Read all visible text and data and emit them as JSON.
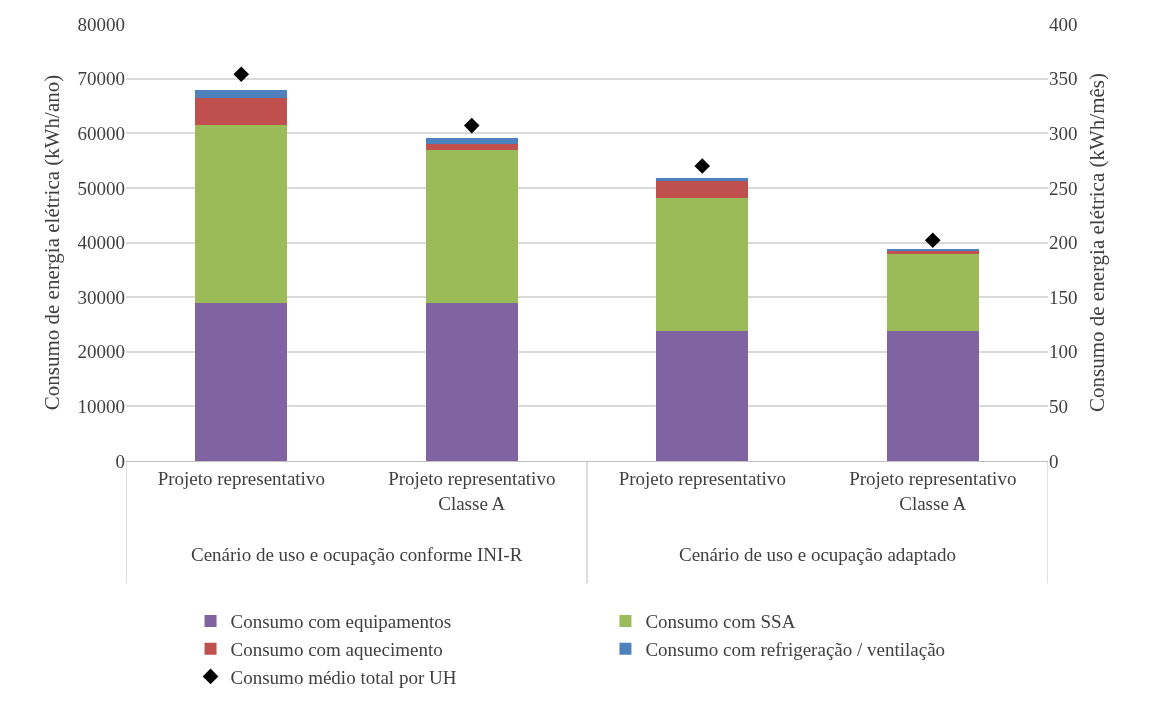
{
  "chart_data": {
    "type": "bar",
    "stacked": true,
    "categories": [
      "Projeto representativo",
      "Projeto representativo Classe A",
      "Projeto representativo",
      "Projeto representativo Classe A"
    ],
    "ylabel": "Consumo de energia elétrica (kWh/ano)",
    "y2label": "Consumo de energia elétrica (kWh/mês)",
    "ylim": [
      0,
      80000
    ],
    "yticks": [
      0,
      10000,
      20000,
      30000,
      40000,
      50000,
      60000,
      70000,
      80000
    ],
    "y2lim": [
      0,
      400
    ],
    "y2ticks": [
      0,
      50,
      100,
      150,
      200,
      250,
      300,
      350,
      400
    ],
    "grid": "y",
    "legend": "bottom",
    "annotations": [
      "Cenário de uso e ocupação conforme INI-R",
      "Cenário de uso e ocupação adaptado"
    ],
    "series": [
      {
        "name": "Consumo com equipamentos",
        "color": "#8064a2",
        "values": [
          28900,
          28900,
          23800,
          23800
        ]
      },
      {
        "name": "Consumo com SSA",
        "color": "#9bbb59",
        "values": [
          32600,
          28100,
          24400,
          14100
        ]
      },
      {
        "name": "Consumo com aquecimento",
        "color": "#c0504d",
        "values": [
          5000,
          1000,
          3100,
          500
        ]
      },
      {
        "name": "Consumo com refrigeração / ventilação",
        "color": "#4f81bd",
        "values": [
          1500,
          1100,
          500,
          400
        ]
      },
      {
        "name": "Consumo médio total por UH",
        "type": "scatter",
        "axis": "y2",
        "marker": "diamond",
        "color": "#000000",
        "values": [
          354,
          307,
          270,
          202
        ]
      }
    ]
  }
}
